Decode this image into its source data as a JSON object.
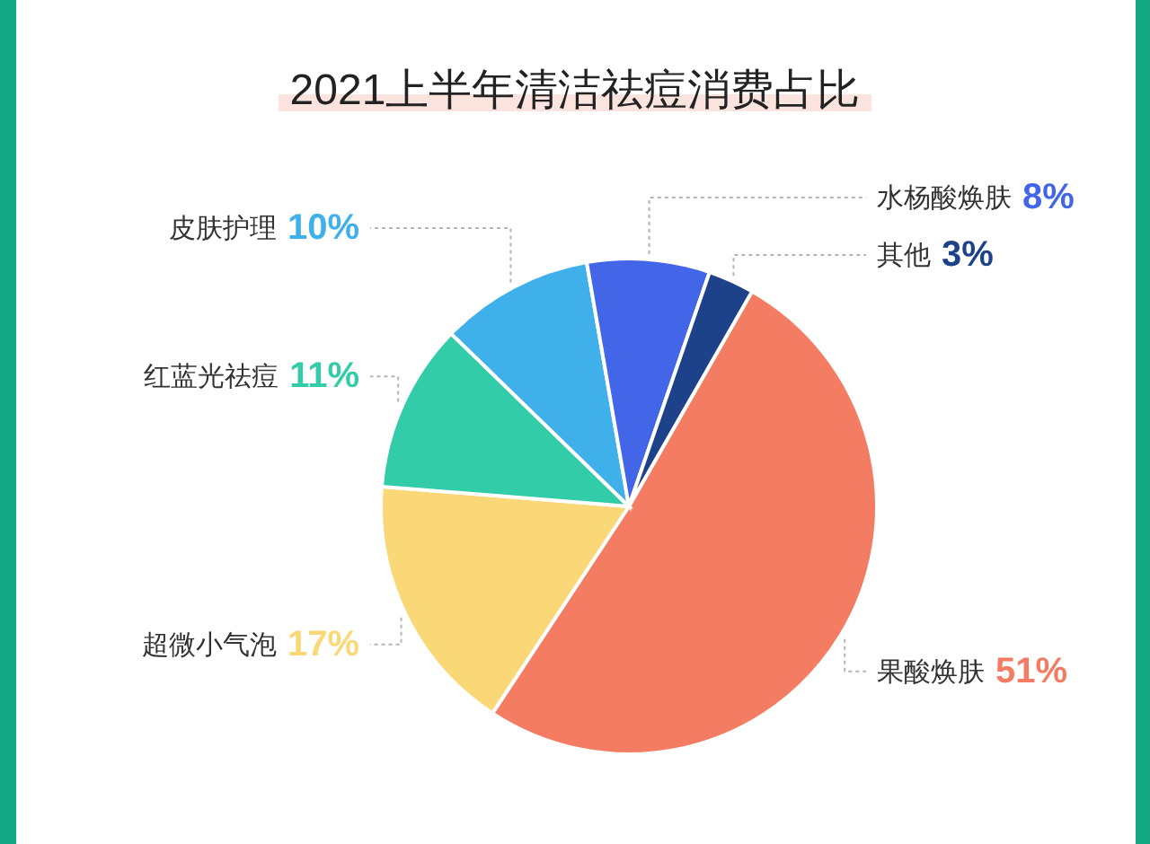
{
  "chart_data": {
    "type": "pie",
    "title": "2021上半年清洁祛痘消费占比",
    "categories": [
      "果酸焕肤",
      "超微小气泡",
      "红蓝光祛痘",
      "皮肤护理",
      "水杨酸焕肤",
      "其他"
    ],
    "values": [
      51,
      17,
      11,
      10,
      8,
      3
    ],
    "colors": [
      "#f47c62",
      "#fad878",
      "#33cca8",
      "#40b0ea",
      "#4365e8",
      "#1d4289"
    ],
    "value_labels": [
      "51%",
      "17%",
      "11%",
      "10%",
      "8%",
      "3%"
    ]
  }
}
